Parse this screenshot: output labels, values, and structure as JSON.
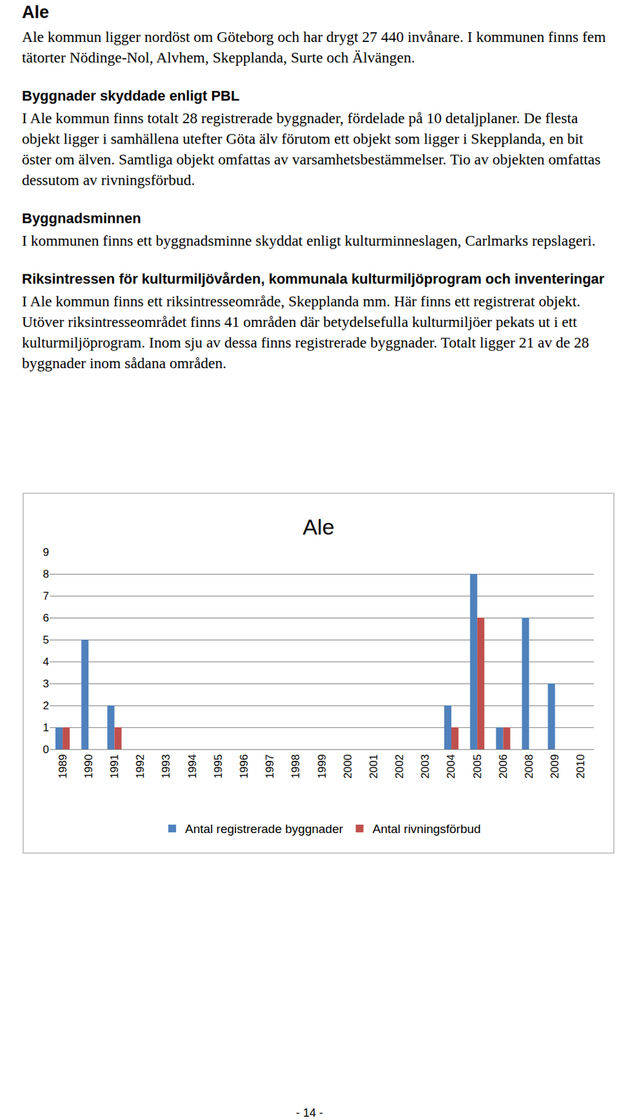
{
  "heading": "Ale",
  "sections": [
    {
      "paragraph": "Ale kommun ligger nordöst om Göteborg och har drygt 27 440 invånare. I kommunen finns fem tätorter Nödinge-Nol, Alvhem, Skepplanda, Surte och Älvängen."
    },
    {
      "title": "Byggnader skyddade enligt PBL",
      "paragraph": "I Ale kommun finns totalt 28 registrerade byggnader, fördelade på 10 detaljplaner. De flesta objekt ligger i samhällena utefter Göta älv förutom ett objekt som ligger i Skepplanda, en bit öster om älven. Samtliga objekt omfattas av varsamhetsbestämmelser. Tio av objekten omfattas dessutom av rivningsförbud."
    },
    {
      "title": "Byggnadsminnen",
      "paragraph": "I kommunen finns ett byggnadsminne skyddat enligt kulturminneslagen, Carlmarks repslageri."
    },
    {
      "title": "Riksintressen för kulturmiljövården, kommunala kulturmiljöprogram och inventeringar",
      "paragraph": "I Ale kommun finns ett riksintresseområde, Skepplanda mm. Här finns ett registrerat objekt. Utöver riksintresseområdet finns 41 områden där betydelsefulla kulturmiljöer pekats ut i ett kulturmiljöprogram. Inom sju av dessa finns registrerade byggnader. Totalt ligger 21 av de 28 byggnader inom sådana områden."
    }
  ],
  "chart_data": {
    "type": "bar",
    "title": "Ale",
    "categories": [
      "1989",
      "1990",
      "1991",
      "1992",
      "1993",
      "1994",
      "1995",
      "1996",
      "1997",
      "1998",
      "1999",
      "2000",
      "2001",
      "2002",
      "2003",
      "2004",
      "2005",
      "2006",
      "2008",
      "2009",
      "2010"
    ],
    "series": [
      {
        "name": "Antal registrerade byggnader",
        "color": "#4f81bd",
        "values": [
          1,
          5,
          2,
          0,
          0,
          0,
          0,
          0,
          0,
          0,
          0,
          0,
          0,
          0,
          0,
          2,
          8,
          1,
          6,
          3,
          0
        ]
      },
      {
        "name": "Antal rivningsförbud",
        "color": "#c0504d",
        "values": [
          1,
          0,
          1,
          0,
          0,
          0,
          0,
          0,
          0,
          0,
          0,
          0,
          0,
          0,
          0,
          1,
          6,
          1,
          0,
          0,
          0
        ]
      }
    ],
    "ylim": [
      0,
      9
    ],
    "yticks": [
      0,
      1,
      2,
      3,
      4,
      5,
      6,
      7,
      8,
      9
    ],
    "grid": true,
    "legend": "bottom"
  },
  "page_number": "- 14 -"
}
